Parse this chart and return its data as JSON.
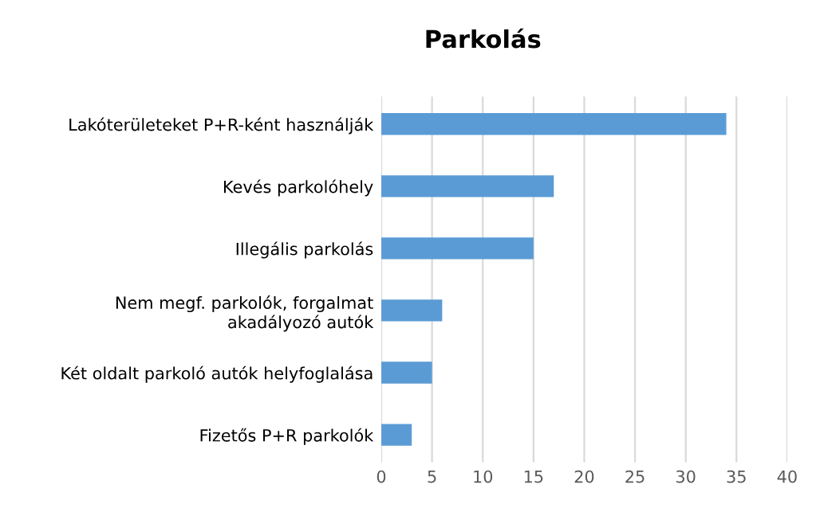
{
  "chart_data": {
    "type": "bar",
    "orientation": "horizontal",
    "title": "Parkolás",
    "categories": [
      "Lakóterületeket P+R-ként használják",
      "Kevés parkolóhely",
      "Illegális parkolás",
      "Nem megf. parkolók, forgalmat\nakadályozó autók",
      "Két oldalt parkoló autók helyfoglalása",
      "Fizetős P+R parkolók"
    ],
    "values": [
      34,
      17,
      15,
      6,
      5,
      3
    ],
    "color": "#5b9bd5",
    "xlim": [
      0,
      40
    ],
    "xticks": [
      0,
      5,
      10,
      15,
      20,
      25,
      30,
      35,
      40
    ],
    "grid": "x"
  }
}
